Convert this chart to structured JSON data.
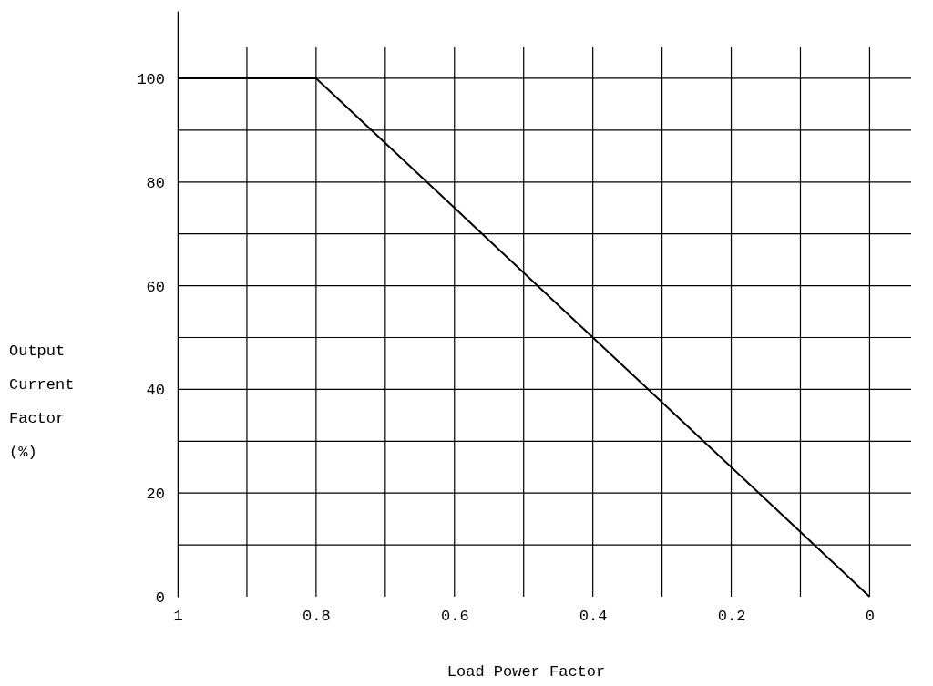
{
  "chart_data": {
    "type": "line",
    "xlabel": "Load Power Factor",
    "ylabel": "Output Current Factor (%)",
    "x": [
      1,
      0.8,
      0
    ],
    "series": [
      {
        "color": "#000000",
        "values": [
          100,
          100,
          0
        ]
      }
    ],
    "xlim": [
      1,
      -0.06
    ],
    "ylim": [
      0,
      113
    ],
    "xticks": [
      1,
      {
        "value": 0.9,
        "label": null
      },
      {
        "value": 0.8,
        "label": "0.8"
      },
      {
        "value": 0.7,
        "label": null
      },
      {
        "value": 0.6,
        "label": "0.6"
      },
      {
        "value": 0.5,
        "label": null
      },
      {
        "value": 0.4,
        "label": "0.4"
      },
      {
        "value": 0.3,
        "label": null
      },
      {
        "value": 0.2,
        "label": "0.2"
      },
      {
        "value": 0.1,
        "label": null
      },
      0
    ],
    "yticks": [
      0,
      {
        "value": 10,
        "label": null
      },
      20,
      {
        "value": 30,
        "label": null
      },
      40,
      {
        "value": 50,
        "label": null
      },
      60,
      {
        "value": 70,
        "label": null
      },
      80,
      {
        "value": 90,
        "label": null
      },
      100
    ],
    "grid": true,
    "marker": "none",
    "line_style": "solid"
  }
}
